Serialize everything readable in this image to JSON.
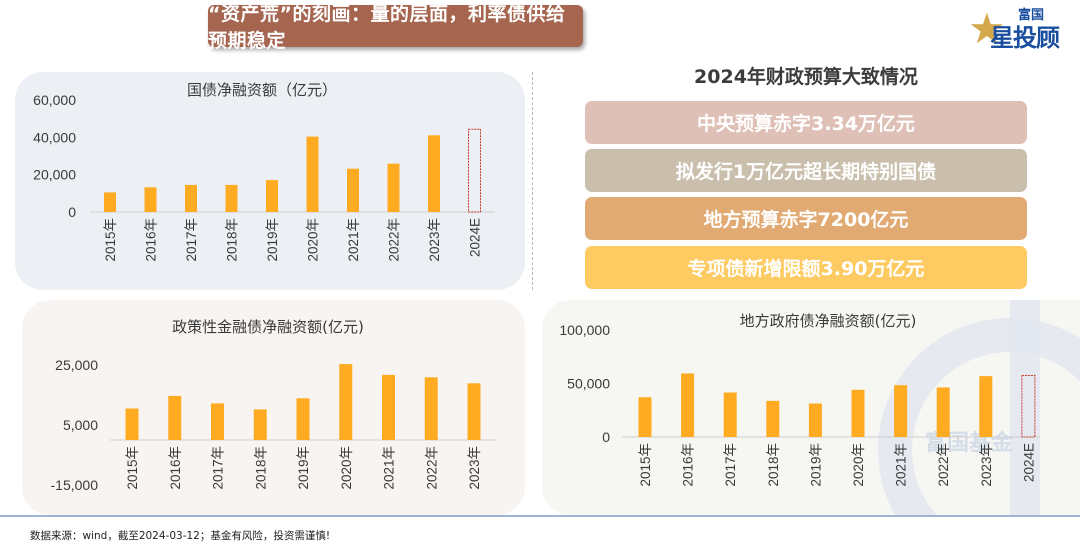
{
  "header": {
    "title": "“资产荒”的刻画：量的层面，利率债供给预期稳定",
    "logo_top": "富国",
    "logo_main": "星投顾"
  },
  "budget": {
    "title": "2024年财政预算大致情况",
    "items": [
      {
        "label": "中央预算赤字3.34万亿元",
        "color": "#dfc0b6"
      },
      {
        "label": "拟发行1万亿元超长期特别国债",
        "color": "#c9bfac"
      },
      {
        "label": "地方预算赤字7200亿元",
        "color": "#e2aa73"
      },
      {
        "label": "专项债新增限额3.90万亿元",
        "color": "#fdcb62"
      }
    ]
  },
  "watermark": "富国基金",
  "footer": "数据来源：wind，截至2024-03-12；基金有风险，投资需谨慎!",
  "colors": {
    "bar": "#ffab21",
    "estimate_outline": "#c0392b"
  },
  "chart_data": [
    {
      "type": "bar",
      "title": "国债净融资额（亿元）",
      "categories": [
        "2015年",
        "2016年",
        "2017年",
        "2018年",
        "2019年",
        "2020年",
        "2021年",
        "2022年",
        "2023年",
        "2024E"
      ],
      "values": [
        10500,
        13200,
        14500,
        14500,
        17100,
        40400,
        23200,
        25900,
        41100,
        44300
      ],
      "estimate_categories": [
        "2024E"
      ],
      "yticks": [
        "0",
        "20,000",
        "40,000",
        "60,000"
      ],
      "ytick_values": [
        0,
        20000,
        40000,
        60000
      ],
      "ylim": [
        0,
        60000
      ],
      "grid": false
    },
    {
      "type": "bar",
      "title": "政策性金融债净融资额(亿元)",
      "categories": [
        "2015年",
        "2016年",
        "2017年",
        "2018年",
        "2019年",
        "2020年",
        "2021年",
        "2022年",
        "2023年"
      ],
      "values": [
        10500,
        14700,
        12200,
        10200,
        13900,
        25300,
        21700,
        20900,
        18900
      ],
      "estimate_categories": [],
      "yticks": [
        "-15,000",
        "5,000",
        "25,000"
      ],
      "ytick_values": [
        -15000,
        5000,
        25000
      ],
      "ylim": [
        -15000,
        25000
      ],
      "grid": false
    },
    {
      "type": "bar",
      "title": "地方政府债净融资额(亿元)",
      "categories": [
        "2015年",
        "2016年",
        "2017年",
        "2018年",
        "2019年",
        "2020年",
        "2021年",
        "2022年",
        "2023年",
        "2024E"
      ],
      "values": [
        37200,
        59400,
        41600,
        33800,
        31300,
        44100,
        48400,
        46300,
        56900,
        57500
      ],
      "estimate_categories": [
        "2024E"
      ],
      "yticks": [
        "0",
        "50,000",
        "100,000"
      ],
      "ytick_values": [
        0,
        50000,
        100000
      ],
      "ylim": [
        0,
        100000
      ],
      "grid": false
    }
  ]
}
